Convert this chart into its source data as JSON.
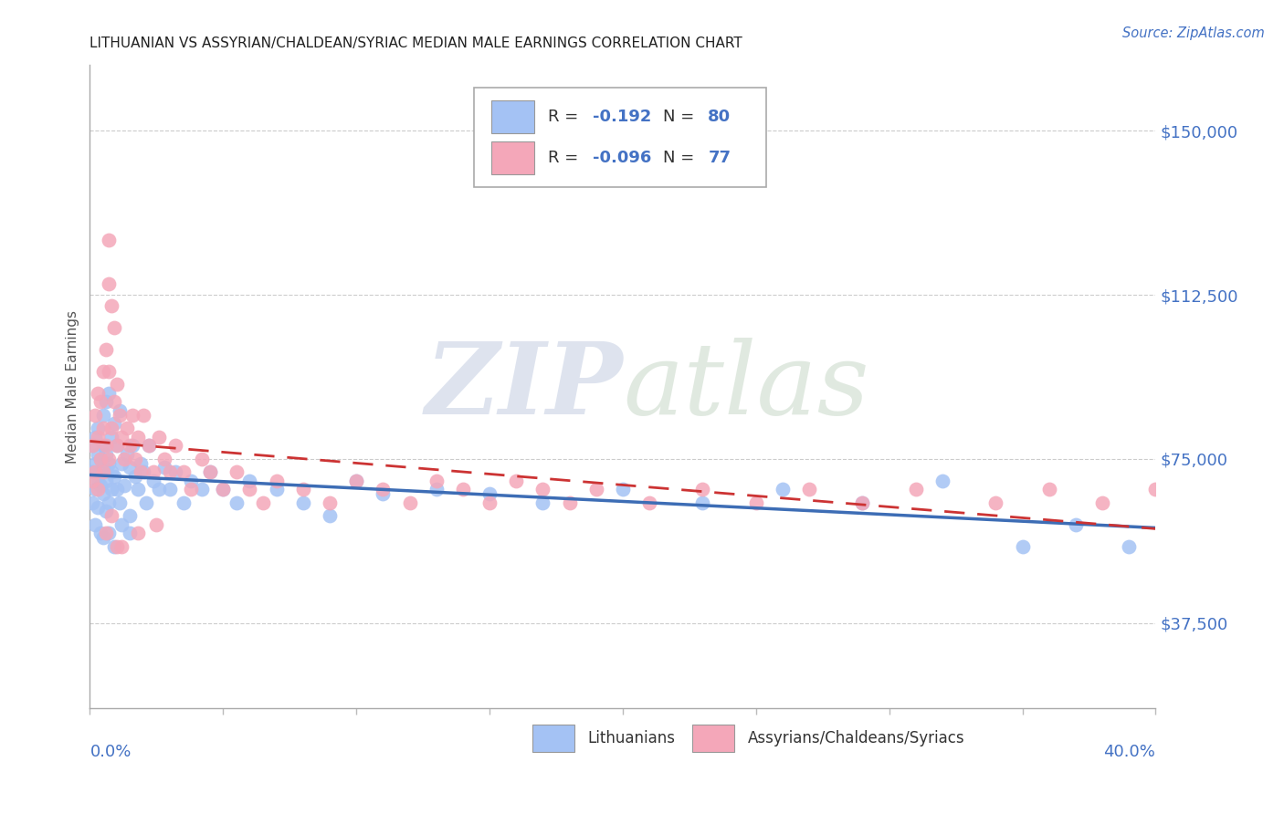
{
  "title": "LITHUANIAN VS ASSYRIAN/CHALDEAN/SYRIAC MEDIAN MALE EARNINGS CORRELATION CHART",
  "source": "Source: ZipAtlas.com",
  "ylabel": "Median Male Earnings",
  "yticks": [
    37500,
    75000,
    112500,
    150000
  ],
  "ytick_labels": [
    "$37,500",
    "$75,000",
    "$112,500",
    "$150,000"
  ],
  "xmin": 0.0,
  "xmax": 0.4,
  "ymin": 18000,
  "ymax": 165000,
  "r_lithuanian": -0.192,
  "n_lithuanian": 80,
  "r_assyrian": -0.096,
  "n_assyrian": 77,
  "color_lithuanian": "#a4c2f4",
  "color_assyrian": "#f4a7b9",
  "color_line_lithuanian": "#3d6db5",
  "color_line_assyrian": "#cc3333",
  "legend_label_1": "Lithuanians",
  "legend_label_2": "Assyrians/Chaldeans/Syriacs",
  "blue_color": "#4472c4",
  "title_color": "#222222",
  "source_color": "#4472c4",
  "scatter_lit_x": [
    0.001,
    0.001,
    0.001,
    0.002,
    0.002,
    0.002,
    0.002,
    0.003,
    0.003,
    0.003,
    0.003,
    0.004,
    0.004,
    0.004,
    0.004,
    0.005,
    0.005,
    0.005,
    0.005,
    0.006,
    0.006,
    0.006,
    0.006,
    0.007,
    0.007,
    0.007,
    0.008,
    0.008,
    0.008,
    0.009,
    0.009,
    0.01,
    0.01,
    0.011,
    0.011,
    0.012,
    0.013,
    0.014,
    0.015,
    0.015,
    0.016,
    0.017,
    0.018,
    0.019,
    0.02,
    0.021,
    0.022,
    0.024,
    0.026,
    0.028,
    0.03,
    0.032,
    0.035,
    0.038,
    0.042,
    0.045,
    0.05,
    0.055,
    0.06,
    0.07,
    0.08,
    0.09,
    0.1,
    0.11,
    0.13,
    0.15,
    0.17,
    0.2,
    0.23,
    0.26,
    0.29,
    0.32,
    0.35,
    0.37,
    0.39,
    0.005,
    0.007,
    0.009,
    0.012,
    0.015
  ],
  "scatter_lit_y": [
    72000,
    65000,
    78000,
    80000,
    68000,
    74000,
    60000,
    82000,
    70000,
    76000,
    64000,
    75000,
    69000,
    72000,
    58000,
    85000,
    73000,
    67000,
    78000,
    88000,
    76000,
    70000,
    63000,
    90000,
    74000,
    65000,
    80000,
    72000,
    68000,
    83000,
    71000,
    78000,
    68000,
    86000,
    65000,
    74000,
    69000,
    76000,
    73000,
    62000,
    78000,
    71000,
    68000,
    74000,
    72000,
    65000,
    78000,
    70000,
    68000,
    73000,
    68000,
    72000,
    65000,
    70000,
    68000,
    72000,
    68000,
    65000,
    70000,
    68000,
    65000,
    62000,
    70000,
    67000,
    68000,
    67000,
    65000,
    68000,
    65000,
    68000,
    65000,
    70000,
    55000,
    60000,
    55000,
    57000,
    58000,
    55000,
    60000,
    58000
  ],
  "scatter_asy_x": [
    0.001,
    0.001,
    0.002,
    0.002,
    0.003,
    0.003,
    0.003,
    0.004,
    0.004,
    0.005,
    0.005,
    0.005,
    0.006,
    0.006,
    0.007,
    0.007,
    0.007,
    0.008,
    0.008,
    0.009,
    0.009,
    0.01,
    0.01,
    0.011,
    0.012,
    0.013,
    0.014,
    0.015,
    0.016,
    0.017,
    0.018,
    0.019,
    0.02,
    0.022,
    0.024,
    0.026,
    0.028,
    0.03,
    0.032,
    0.035,
    0.038,
    0.042,
    0.045,
    0.05,
    0.055,
    0.06,
    0.065,
    0.07,
    0.08,
    0.09,
    0.1,
    0.11,
    0.12,
    0.13,
    0.14,
    0.15,
    0.16,
    0.17,
    0.18,
    0.19,
    0.21,
    0.23,
    0.25,
    0.27,
    0.29,
    0.31,
    0.34,
    0.36,
    0.38,
    0.4,
    0.006,
    0.008,
    0.012,
    0.018,
    0.025,
    0.007,
    0.01
  ],
  "scatter_asy_y": [
    78000,
    70000,
    85000,
    72000,
    90000,
    80000,
    68000,
    88000,
    75000,
    95000,
    82000,
    72000,
    100000,
    78000,
    115000,
    95000,
    75000,
    110000,
    82000,
    105000,
    88000,
    92000,
    78000,
    85000,
    80000,
    75000,
    82000,
    78000,
    85000,
    75000,
    80000,
    72000,
    85000,
    78000,
    72000,
    80000,
    75000,
    72000,
    78000,
    72000,
    68000,
    75000,
    72000,
    68000,
    72000,
    68000,
    65000,
    70000,
    68000,
    65000,
    70000,
    68000,
    65000,
    70000,
    68000,
    65000,
    70000,
    68000,
    65000,
    68000,
    65000,
    68000,
    65000,
    68000,
    65000,
    68000,
    65000,
    68000,
    65000,
    68000,
    58000,
    62000,
    55000,
    58000,
    60000,
    125000,
    55000
  ]
}
